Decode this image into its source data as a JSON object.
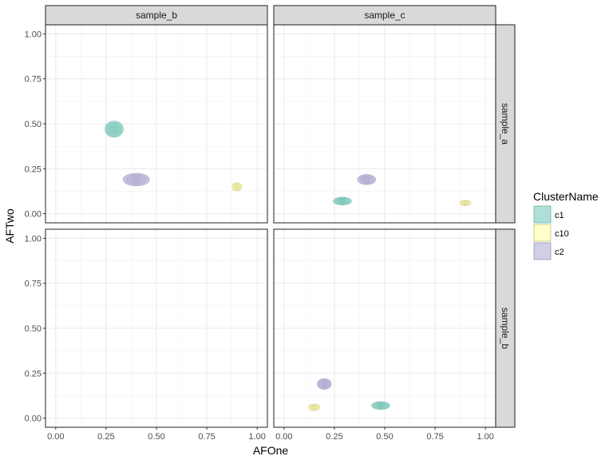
{
  "chart_data": {
    "type": "scatter",
    "subtype": "density-contour facet grid",
    "xlabel": "AFOne",
    "ylabel": "AFTwo",
    "xlim": [
      0,
      1
    ],
    "ylim": [
      0,
      1
    ],
    "x_ticks": [
      "0.00",
      "0.25",
      "0.50",
      "0.75",
      "1.00"
    ],
    "y_ticks": [
      "0.00",
      "0.25",
      "0.50",
      "0.75",
      "1.00"
    ],
    "grid": true,
    "facet_cols": [
      "sample_b",
      "sample_c"
    ],
    "facet_rows": [
      "sample_a",
      "sample_b"
    ],
    "legend": {
      "title": "ClusterName",
      "position": "right",
      "items": [
        {
          "name": "c1",
          "color": "#8dd3c7"
        },
        {
          "name": "c10",
          "color": "#ffffb3"
        },
        {
          "name": "c2",
          "color": "#bebada"
        }
      ]
    },
    "panels": [
      {
        "row": "sample_a",
        "col": "sample_b",
        "clusters": [
          {
            "series": "c1",
            "x": 0.29,
            "y": 0.47,
            "spread_x": 0.045,
            "spread_y": 0.045
          },
          {
            "series": "c2",
            "x": 0.4,
            "y": 0.19,
            "spread_x": 0.065,
            "spread_y": 0.035
          },
          {
            "series": "c10",
            "x": 0.9,
            "y": 0.15,
            "spread_x": 0.025,
            "spread_y": 0.022
          }
        ]
      },
      {
        "row": "sample_a",
        "col": "sample_c",
        "clusters": [
          {
            "series": "c1",
            "x": 0.29,
            "y": 0.07,
            "spread_x": 0.045,
            "spread_y": 0.022
          },
          {
            "series": "c2",
            "x": 0.41,
            "y": 0.19,
            "spread_x": 0.045,
            "spread_y": 0.028
          },
          {
            "series": "c10",
            "x": 0.9,
            "y": 0.06,
            "spread_x": 0.028,
            "spread_y": 0.015
          }
        ]
      },
      {
        "row": "sample_b",
        "col": "sample_b",
        "clusters": []
      },
      {
        "row": "sample_b",
        "col": "sample_c",
        "clusters": [
          {
            "series": "c2",
            "x": 0.2,
            "y": 0.19,
            "spread_x": 0.035,
            "spread_y": 0.03
          },
          {
            "series": "c1",
            "x": 0.48,
            "y": 0.07,
            "spread_x": 0.045,
            "spread_y": 0.022
          },
          {
            "series": "c10",
            "x": 0.15,
            "y": 0.06,
            "spread_x": 0.028,
            "spread_y": 0.018
          }
        ]
      }
    ]
  }
}
